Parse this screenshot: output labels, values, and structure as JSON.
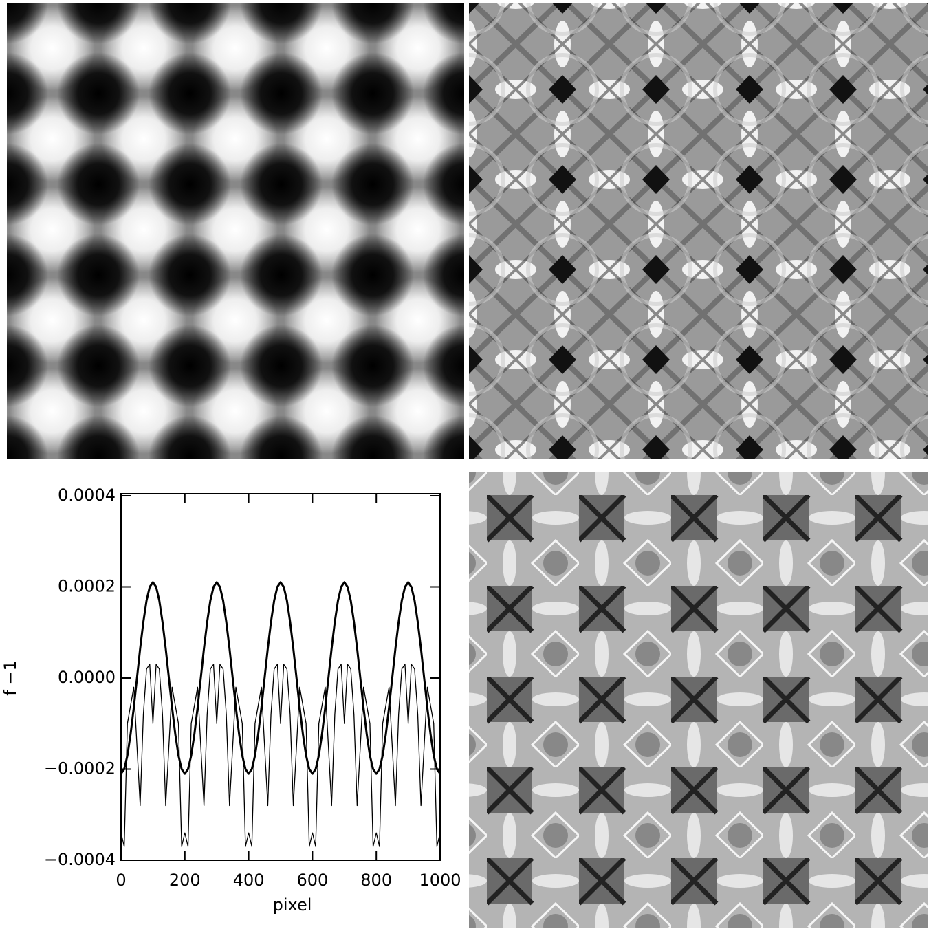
{
  "chart_data": {
    "type": "line",
    "x_label": "pixel",
    "y_label": "f −1",
    "x": [
      0,
      10,
      20,
      30,
      40,
      50,
      60,
      70,
      80,
      90,
      100,
      110,
      120,
      130,
      140,
      150,
      160,
      170,
      180,
      190,
      200,
      210,
      220,
      230,
      240,
      250,
      260,
      270,
      280,
      290,
      300,
      310,
      320,
      330,
      340,
      350,
      360,
      370,
      380,
      390,
      400,
      410,
      420,
      430,
      440,
      450,
      460,
      470,
      480,
      490,
      500,
      510,
      520,
      530,
      540,
      550,
      560,
      570,
      580,
      590,
      600,
      610,
      620,
      630,
      640,
      650,
      660,
      670,
      680,
      690,
      700,
      710,
      720,
      730,
      740,
      750,
      760,
      770,
      780,
      790,
      800,
      810,
      820,
      830,
      840,
      850,
      860,
      870,
      880,
      890,
      900,
      910,
      920,
      930,
      940,
      950,
      960,
      970,
      980,
      990,
      1000
    ],
    "series": [
      {
        "color": "#000000",
        "width": 3,
        "values": [
          -0.00021,
          -0.0002,
          -0.00017,
          -0.000123,
          -6.5e-05,
          0,
          6.5e-05,
          0.000123,
          0.00017,
          0.0002,
          0.00021,
          0.0002,
          0.00017,
          0.000123,
          6.5e-05,
          0,
          -6.5e-05,
          -0.000123,
          -0.00017,
          -0.0002,
          -0.00021,
          -0.0002,
          -0.00017,
          -0.000123,
          -6.5e-05,
          0,
          6.5e-05,
          0.000123,
          0.00017,
          0.0002,
          0.00021,
          0.0002,
          0.00017,
          0.000123,
          6.5e-05,
          0,
          -6.5e-05,
          -0.000123,
          -0.00017,
          -0.0002,
          -0.00021,
          -0.0002,
          -0.00017,
          -0.000123,
          -6.5e-05,
          0,
          6.5e-05,
          0.000123,
          0.00017,
          0.0002,
          0.00021,
          0.0002,
          0.00017,
          0.000123,
          6.5e-05,
          0,
          -6.5e-05,
          -0.000123,
          -0.00017,
          -0.0002,
          -0.00021,
          -0.0002,
          -0.00017,
          -0.000123,
          -6.5e-05,
          0,
          6.5e-05,
          0.000123,
          0.00017,
          0.0002,
          0.00021,
          0.0002,
          0.00017,
          0.000123,
          6.5e-05,
          0,
          -6.5e-05,
          -0.000123,
          -0.00017,
          -0.0002,
          -0.00021,
          -0.0002,
          -0.00017,
          -0.000123,
          -6.5e-05,
          0,
          6.5e-05,
          0.000123,
          0.00017,
          0.0002,
          0.00021,
          0.0002,
          0.00017,
          0.000123,
          6.5e-05,
          0,
          -6.5e-05,
          -0.000123,
          -0.00017,
          -0.0002,
          -0.00021
        ]
      },
      {
        "color": "#000000",
        "width": 1.3,
        "values": [
          -0.00034,
          -0.00037,
          -0.0001,
          -6e-05,
          -2e-05,
          -0.00015,
          -0.00028,
          -8e-05,
          2e-05,
          3e-05,
          -0.0001,
          3e-05,
          2e-05,
          -8e-05,
          -0.00028,
          -0.00015,
          -2e-05,
          -6e-05,
          -0.0001,
          -0.00037,
          -0.00034,
          -0.00037,
          -0.0001,
          -6e-05,
          -2e-05,
          -0.00015,
          -0.00028,
          -8e-05,
          2e-05,
          3e-05,
          -0.0001,
          3e-05,
          2e-05,
          -8e-05,
          -0.00028,
          -0.00015,
          -2e-05,
          -6e-05,
          -0.0001,
          -0.00037,
          -0.00034,
          -0.00037,
          -0.0001,
          -6e-05,
          -2e-05,
          -0.00015,
          -0.00028,
          -8e-05,
          2e-05,
          3e-05,
          -0.0001,
          3e-05,
          2e-05,
          -8e-05,
          -0.00028,
          -0.00015,
          -2e-05,
          -6e-05,
          -0.0001,
          -0.00037,
          -0.00034,
          -0.00037,
          -0.0001,
          -6e-05,
          -2e-05,
          -0.00015,
          -0.00028,
          -8e-05,
          2e-05,
          3e-05,
          -0.0001,
          3e-05,
          2e-05,
          -8e-05,
          -0.00028,
          -0.00015,
          -2e-05,
          -6e-05,
          -0.0001,
          -0.00037,
          -0.00034,
          -0.00037,
          -0.0001,
          -6e-05,
          -2e-05,
          -0.00015,
          -0.00028,
          -8e-05,
          2e-05,
          3e-05,
          -0.0001,
          3e-05,
          2e-05,
          -8e-05,
          -0.00028,
          -0.00015,
          -2e-05,
          -6e-05,
          -0.0001,
          -0.00037,
          -0.00034
        ]
      }
    ],
    "xlim": [
      0,
      1000
    ],
    "xticks": [
      0,
      200,
      400,
      600,
      800,
      1000
    ],
    "ylim": [
      -0.0004,
      0.0004
    ],
    "yticks": [
      {
        "value": -0.0004,
        "label": "−0.0004"
      },
      {
        "value": -0.0002,
        "label": "−0.0002"
      },
      {
        "value": 0,
        "label": "0.0000"
      },
      0.0002,
      0.0004
    ]
  }
}
